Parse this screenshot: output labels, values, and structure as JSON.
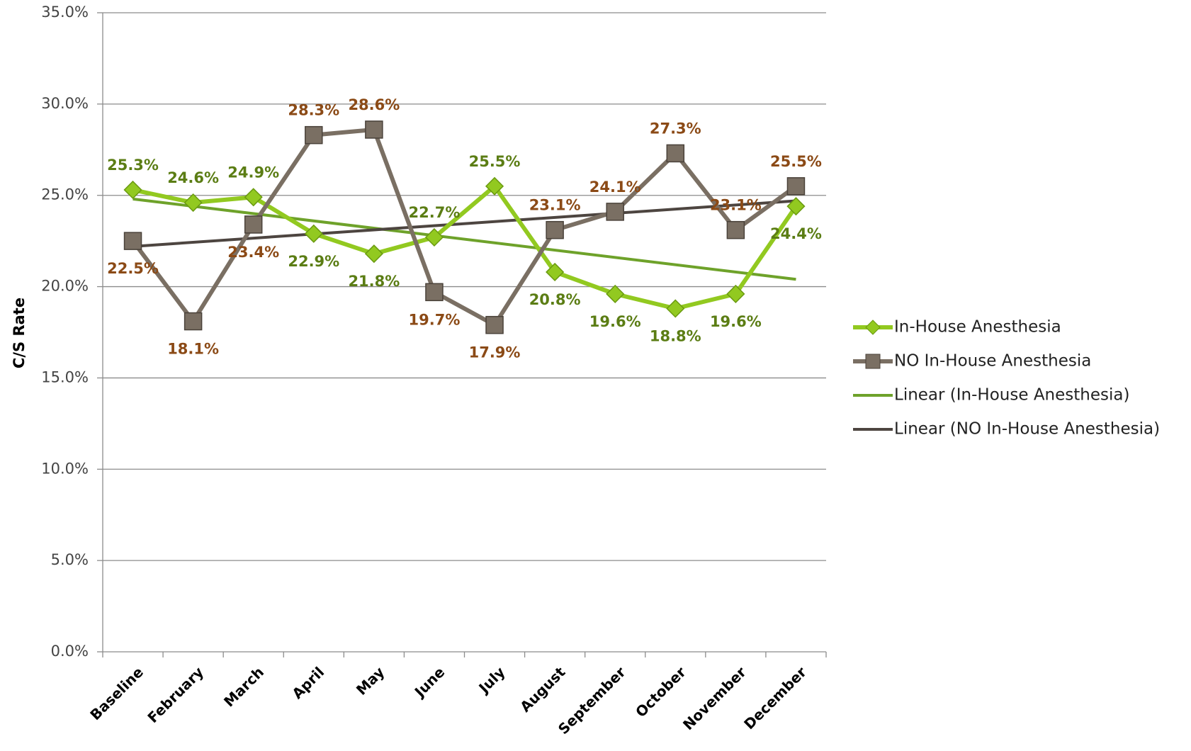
{
  "chart_data": {
    "type": "line",
    "ylabel": "C/S Rate",
    "categories": [
      "Baseline",
      "February",
      "March",
      "April",
      "May",
      "June",
      "July",
      "August",
      "September",
      "October",
      "November",
      "December"
    ],
    "series": [
      {
        "name": "In-House Anesthesia",
        "color": "#92c920",
        "label_color": "#5b7d14",
        "marker": "diamond",
        "values": [
          25.3,
          24.6,
          24.9,
          22.9,
          21.8,
          22.7,
          25.5,
          20.8,
          19.6,
          18.8,
          19.6,
          24.4
        ],
        "value_labels": [
          "25.3%",
          "24.6%",
          "24.9%",
          "22.9%",
          "21.8%",
          "22.7%",
          "25.5%",
          "20.8%",
          "19.6%",
          "18.8%",
          "19.6%",
          "24.4%"
        ]
      },
      {
        "name": "NO In-House Anesthesia",
        "color": "#7a6f63",
        "label_color": "#8b4a16",
        "marker": "square",
        "values": [
          22.5,
          18.1,
          23.4,
          28.3,
          28.6,
          19.7,
          17.9,
          23.1,
          24.1,
          27.3,
          23.1,
          25.5
        ],
        "value_labels": [
          "22.5%",
          "18.1%",
          "23.4%",
          "28.3%",
          "28.6%",
          "19.7%",
          "17.9%",
          "23.1%",
          "24.1%",
          "27.3%",
          "23.1%",
          "25.5%"
        ]
      }
    ],
    "trendlines": [
      {
        "name": "Linear (In-House Anesthesia)",
        "color": "#6ea22a",
        "values": [
          24.8,
          20.4
        ]
      },
      {
        "name": "Linear (NO In-House Anesthesia)",
        "color": "#4d4540",
        "values": [
          22.2,
          24.7
        ]
      }
    ],
    "ylim": [
      0,
      35
    ],
    "yticks": [
      {
        "value": 0,
        "label": "0.0%"
      },
      {
        "value": 5,
        "label": "5.0%"
      },
      {
        "value": 10,
        "label": "10.0%"
      },
      {
        "value": 15,
        "label": "15.0%"
      },
      {
        "value": 20,
        "label": "20.0%"
      },
      {
        "value": 25,
        "label": "25.0%"
      },
      {
        "value": 30,
        "label": "30.0%"
      },
      {
        "value": 35,
        "label": "35.0%"
      }
    ],
    "grid": true,
    "legend": "right"
  }
}
